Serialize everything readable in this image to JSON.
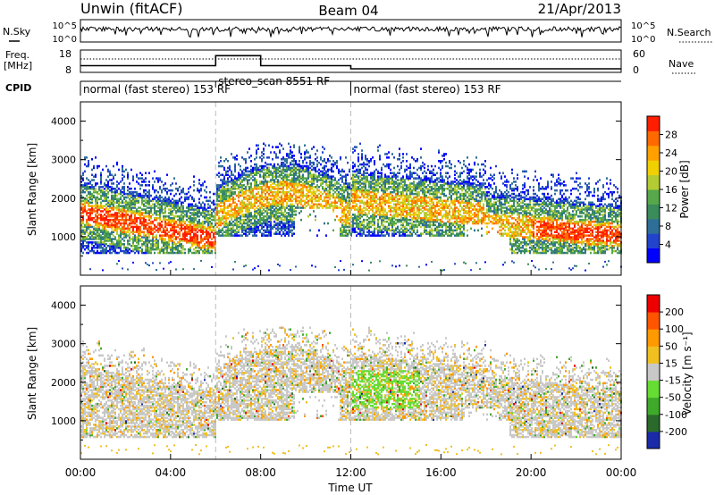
{
  "header": {
    "radar": "Unwin (fitACF)",
    "beam": "Beam 04",
    "date": "21/Apr/2013"
  },
  "top_panels": {
    "nsky_label": "N.Sky",
    "nsearch_label": "N.Search",
    "freq_label": "Freq.",
    "freq_unit": "[MHz]",
    "nave_label": "Nave",
    "cpid_label": "CPID",
    "nsky_ticks": [
      "10^5",
      "10^0"
    ],
    "nsearch_ticks": [
      "10^5",
      "10^0"
    ],
    "freq_ticks": [
      "18",
      "8"
    ],
    "nave_ticks": [
      "60",
      "0"
    ]
  },
  "cpid_segments": [
    {
      "label": "normal (fast stereo) 153 RF",
      "start_h": 0,
      "end_h": 6
    },
    {
      "label": "stereo_scan 8551 RF",
      "start_h": 6,
      "end_h": 12
    },
    {
      "label": "normal (fast stereo) 153 RF",
      "start_h": 12,
      "end_h": 24
    }
  ],
  "chart_data": [
    {
      "type": "heatmap",
      "name": "power",
      "ylabel": "Slant Range [km]",
      "ylim": [
        0,
        4500
      ],
      "yticks": [
        "1000",
        "2000",
        "3000",
        "4000"
      ],
      "xlim_hours": [
        0,
        24
      ],
      "colorbar": {
        "label": "Power [dB]",
        "ticks": [
          "4",
          "8",
          "12",
          "16",
          "20",
          "24",
          "28"
        ],
        "colors": [
          "#0000ff",
          "#2244cc",
          "#2e6f97",
          "#3a8c5a",
          "#57a84a",
          "#b3cc33",
          "#f0d000",
          "#ffa000",
          "#ff6a00",
          "#ff1e00"
        ]
      }
    },
    {
      "type": "heatmap",
      "name": "velocity",
      "ylabel": "Slant Range [km]",
      "ylim": [
        0,
        4500
      ],
      "yticks": [
        "1000",
        "2000",
        "3000",
        "4000"
      ],
      "xlim_hours": [
        0,
        24
      ],
      "xlabel": "Time UT",
      "xticks": [
        "00:00",
        "04:00",
        "08:00",
        "12:00",
        "16:00",
        "20:00",
        "00:00"
      ],
      "colorbar": {
        "label": "Velocity [m s⁻¹]",
        "ticks": [
          "200",
          "100",
          "50",
          "15",
          "-15",
          "-50",
          "-100",
          "-200"
        ],
        "colors": [
          "#1a2aa8",
          "#2a6a2a",
          "#3faa2a",
          "#66dd33",
          "#c8c8c8",
          "#f0c020",
          "#ff9900",
          "#ff5500",
          "#ee0000"
        ]
      }
    }
  ]
}
